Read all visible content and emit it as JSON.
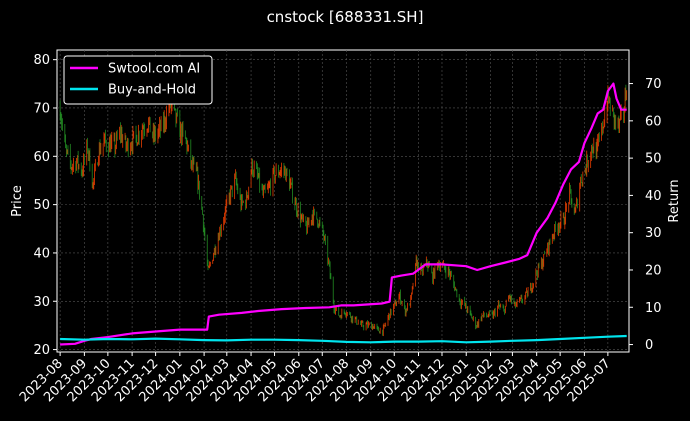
{
  "chart_data": {
    "type": "line",
    "title": "cnstock [688331.SH]",
    "ylabel_left": "Price",
    "ylabel_right": "Return",
    "ylim_left": [
      19.5,
      82
    ],
    "ylim_right": [
      -2,
      79
    ],
    "xlim": [
      "2023-07-28",
      "2025-07-28"
    ],
    "grid": true,
    "legend_position": "top-left",
    "x_tick_labels": [
      "2023-08",
      "2023-09",
      "2023-10",
      "2023-11",
      "2023-12",
      "2024-01",
      "2024-02",
      "2024-03",
      "2024-04",
      "2024-05",
      "2024-06",
      "2024-07",
      "2024-08",
      "2024-09",
      "2024-10",
      "2024-11",
      "2024-12",
      "2025-01",
      "2025-02",
      "2025-03",
      "2025-04",
      "2025-05",
      "2025-06",
      "2025-07"
    ],
    "y_left_ticks": [
      20,
      30,
      40,
      50,
      60,
      70,
      80
    ],
    "y_right_ticks": [
      0,
      10,
      20,
      30,
      40,
      50,
      60,
      70
    ],
    "colors": {
      "strategy": "#ff00ff",
      "buyhold": "#00e5ee",
      "up": "#e53d00",
      "down": "#228b22",
      "grid": "#555555",
      "text": "#ffffff"
    },
    "price_series": {
      "name": "Price",
      "points": [
        [
          "2023-08-01",
          70
        ],
        [
          "2023-08-08",
          61
        ],
        [
          "2023-08-15",
          58
        ],
        [
          "2023-08-22",
          59
        ],
        [
          "2023-08-29",
          57
        ],
        [
          "2023-09-05",
          62
        ],
        [
          "2023-09-12",
          54
        ],
        [
          "2023-09-19",
          61
        ],
        [
          "2023-09-26",
          63
        ],
        [
          "2023-10-10",
          62
        ],
        [
          "2023-10-17",
          65
        ],
        [
          "2023-10-24",
          62
        ],
        [
          "2023-10-31",
          63
        ],
        [
          "2023-11-07",
          64
        ],
        [
          "2023-11-14",
          66
        ],
        [
          "2023-11-21",
          67
        ],
        [
          "2023-11-28",
          64
        ],
        [
          "2023-12-05",
          65
        ],
        [
          "2023-12-12",
          67
        ],
        [
          "2023-12-19",
          71
        ],
        [
          "2023-12-26",
          68
        ],
        [
          "2024-01-02",
          65
        ],
        [
          "2024-01-09",
          63
        ],
        [
          "2024-01-16",
          58
        ],
        [
          "2024-01-23",
          56
        ],
        [
          "2024-01-30",
          48
        ],
        [
          "2024-02-06",
          36
        ],
        [
          "2024-02-20",
          44
        ],
        [
          "2024-02-27",
          48
        ],
        [
          "2024-03-05",
          52
        ],
        [
          "2024-03-12",
          55
        ],
        [
          "2024-03-19",
          50
        ],
        [
          "2024-03-26",
          51
        ],
        [
          "2024-04-02",
          58
        ],
        [
          "2024-04-09",
          56
        ],
        [
          "2024-04-16",
          52
        ],
        [
          "2024-04-23",
          53
        ],
        [
          "2024-04-30",
          56
        ],
        [
          "2024-05-07",
          57
        ],
        [
          "2024-05-14",
          57
        ],
        [
          "2024-05-21",
          54
        ],
        [
          "2024-05-28",
          50
        ],
        [
          "2024-06-04",
          47
        ],
        [
          "2024-06-11",
          45
        ],
        [
          "2024-06-18",
          48
        ],
        [
          "2024-06-25",
          47
        ],
        [
          "2024-07-02",
          44
        ],
        [
          "2024-07-09",
          38
        ],
        [
          "2024-07-16",
          29
        ],
        [
          "2024-07-23",
          27
        ],
        [
          "2024-07-30",
          28
        ],
        [
          "2024-08-06",
          27
        ],
        [
          "2024-08-13",
          26
        ],
        [
          "2024-08-20",
          25
        ],
        [
          "2024-08-27",
          25
        ],
        [
          "2024-09-03",
          25
        ],
        [
          "2024-09-10",
          24
        ],
        [
          "2024-09-17",
          24
        ],
        [
          "2024-09-24",
          27
        ],
        [
          "2024-10-08",
          31
        ],
        [
          "2024-10-15",
          28
        ],
        [
          "2024-10-22",
          30
        ],
        [
          "2024-10-29",
          38
        ],
        [
          "2024-11-05",
          36
        ],
        [
          "2024-11-12",
          38
        ],
        [
          "2024-11-19",
          35
        ],
        [
          "2024-11-26",
          38
        ],
        [
          "2024-12-03",
          37
        ],
        [
          "2024-12-10",
          36
        ],
        [
          "2024-12-17",
          33
        ],
        [
          "2024-12-24",
          30
        ],
        [
          "2024-12-31",
          29
        ],
        [
          "2025-01-07",
          27
        ],
        [
          "2025-01-14",
          25
        ],
        [
          "2025-01-21",
          27
        ],
        [
          "2025-02-04",
          27
        ],
        [
          "2025-02-11",
          29
        ],
        [
          "2025-02-18",
          28
        ],
        [
          "2025-02-25",
          31
        ],
        [
          "2025-03-04",
          29
        ],
        [
          "2025-03-11",
          30
        ],
        [
          "2025-03-18",
          31
        ],
        [
          "2025-03-25",
          33
        ],
        [
          "2025-04-01",
          36
        ],
        [
          "2025-04-08",
          38
        ],
        [
          "2025-04-15",
          41
        ],
        [
          "2025-04-22",
          44
        ],
        [
          "2025-04-29",
          46
        ],
        [
          "2025-05-06",
          47
        ],
        [
          "2025-05-13",
          52
        ],
        [
          "2025-05-20",
          48
        ],
        [
          "2025-05-27",
          55
        ],
        [
          "2025-06-03",
          58
        ],
        [
          "2025-06-10",
          62
        ],
        [
          "2025-06-17",
          61
        ],
        [
          "2025-06-24",
          66
        ],
        [
          "2025-07-01",
          72
        ],
        [
          "2025-07-08",
          68
        ],
        [
          "2025-07-15",
          66
        ],
        [
          "2025-07-22",
          70
        ],
        [
          "2025-07-25",
          75
        ]
      ]
    },
    "series": [
      {
        "name": "Swtool.com AI",
        "points": [
          [
            "2023-08-01",
            0
          ],
          [
            "2023-08-20",
            0.2
          ],
          [
            "2023-09-01",
            1
          ],
          [
            "2023-09-10",
            1.5
          ],
          [
            "2023-10-01",
            2
          ],
          [
            "2023-11-01",
            3
          ],
          [
            "2023-12-01",
            3.5
          ],
          [
            "2024-01-01",
            4
          ],
          [
            "2024-02-05",
            4
          ],
          [
            "2024-02-07",
            7.5
          ],
          [
            "2024-02-20",
            8
          ],
          [
            "2024-03-20",
            8.5
          ],
          [
            "2024-04-10",
            9
          ],
          [
            "2024-05-10",
            9.5
          ],
          [
            "2024-06-10",
            9.8
          ],
          [
            "2024-07-10",
            10
          ],
          [
            "2024-07-25",
            10.5
          ],
          [
            "2024-08-10",
            10.5
          ],
          [
            "2024-09-15",
            11
          ],
          [
            "2024-09-25",
            11.5
          ],
          [
            "2024-09-28",
            18
          ],
          [
            "2024-10-10",
            18.5
          ],
          [
            "2024-10-25",
            19
          ],
          [
            "2024-11-10",
            21.5
          ],
          [
            "2024-12-01",
            21.5
          ],
          [
            "2025-01-01",
            21
          ],
          [
            "2025-01-15",
            20
          ],
          [
            "2025-02-01",
            21
          ],
          [
            "2025-02-20",
            22
          ],
          [
            "2025-03-10",
            23
          ],
          [
            "2025-03-20",
            24
          ],
          [
            "2025-04-01",
            30
          ],
          [
            "2025-04-15",
            34
          ],
          [
            "2025-04-25",
            38
          ],
          [
            "2025-05-05",
            43
          ],
          [
            "2025-05-15",
            47
          ],
          [
            "2025-05-25",
            49
          ],
          [
            "2025-06-01",
            54
          ],
          [
            "2025-06-10",
            58
          ],
          [
            "2025-06-18",
            62
          ],
          [
            "2025-06-25",
            63
          ],
          [
            "2025-07-01",
            68
          ],
          [
            "2025-07-08",
            70
          ],
          [
            "2025-07-12",
            66
          ],
          [
            "2025-07-18",
            63
          ],
          [
            "2025-07-25",
            63
          ]
        ]
      },
      {
        "name": "Buy-and-Hold",
        "points": [
          [
            "2023-08-01",
            1.5
          ],
          [
            "2023-09-01",
            1.3
          ],
          [
            "2023-10-01",
            1.5
          ],
          [
            "2023-11-01",
            1.4
          ],
          [
            "2023-12-01",
            1.6
          ],
          [
            "2024-01-01",
            1.4
          ],
          [
            "2024-02-01",
            1.2
          ],
          [
            "2024-03-01",
            1.1
          ],
          [
            "2024-04-01",
            1.3
          ],
          [
            "2024-05-01",
            1.3
          ],
          [
            "2024-06-01",
            1.2
          ],
          [
            "2024-07-01",
            1.0
          ],
          [
            "2024-08-01",
            0.7
          ],
          [
            "2024-09-01",
            0.6
          ],
          [
            "2024-10-01",
            0.8
          ],
          [
            "2024-11-01",
            0.8
          ],
          [
            "2024-12-01",
            0.9
          ],
          [
            "2025-01-01",
            0.6
          ],
          [
            "2025-02-01",
            0.8
          ],
          [
            "2025-03-01",
            1.0
          ],
          [
            "2025-04-01",
            1.2
          ],
          [
            "2025-05-01",
            1.5
          ],
          [
            "2025-06-01",
            1.8
          ],
          [
            "2025-07-01",
            2.1
          ],
          [
            "2025-07-25",
            2.3
          ]
        ]
      }
    ]
  }
}
